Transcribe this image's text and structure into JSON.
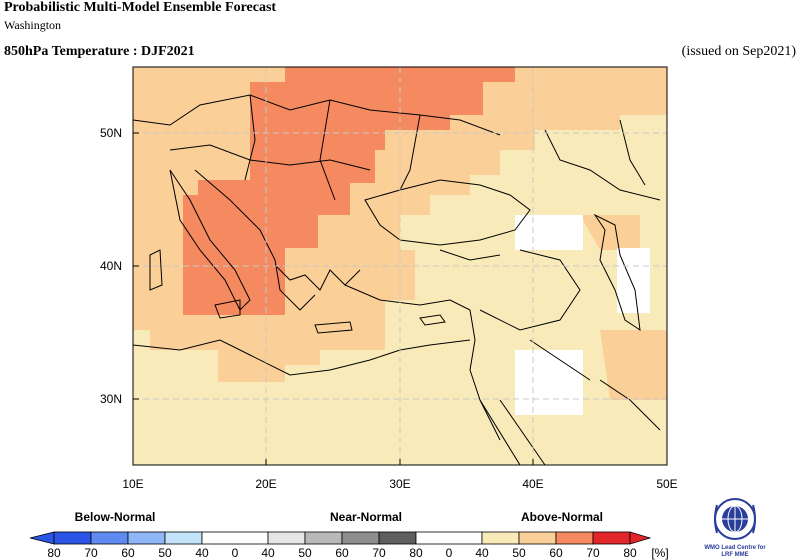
{
  "header": {
    "title": "Probabilistic Multi-Model Ensemble Forecast",
    "subtitle": "Washington",
    "variable": "850hPa Temperature : DJF2021",
    "issued": "(issued on Sep2021)"
  },
  "map": {
    "lon_labels": [
      "10E",
      "20E",
      "30E",
      "40E",
      "50E"
    ],
    "lat_labels": [
      "50N",
      "40N",
      "30N"
    ],
    "colors": {
      "above_40": "#f9ebb9",
      "above_50": "#fbcf98",
      "above_60": "#f58a61",
      "ocean_grid": "#c9c9c9",
      "border": "#000000"
    }
  },
  "legend": {
    "below_label": "Below-Normal",
    "near_label": "Near-Normal",
    "above_label": "Above-Normal",
    "unit": "[%]",
    "ticks": [
      "80",
      "70",
      "60",
      "50",
      "40",
      "0",
      "40",
      "50",
      "60",
      "70",
      "80",
      "0",
      "40",
      "50",
      "60",
      "70",
      "80"
    ],
    "colors": {
      "below": [
        "#2b55e6",
        "#5f8bf0",
        "#8fb6f7",
        "#c4e4fb"
      ],
      "near": [
        "#e6e6e6",
        "#b9b9b9",
        "#8e8e8e",
        "#5f5f5f"
      ],
      "above": [
        "#f9ebb9",
        "#fbcf98",
        "#f58a61",
        "#e3262a"
      ]
    }
  },
  "logo": {
    "line1": "WMO Lead Centre for",
    "line2": "LRF MME"
  }
}
